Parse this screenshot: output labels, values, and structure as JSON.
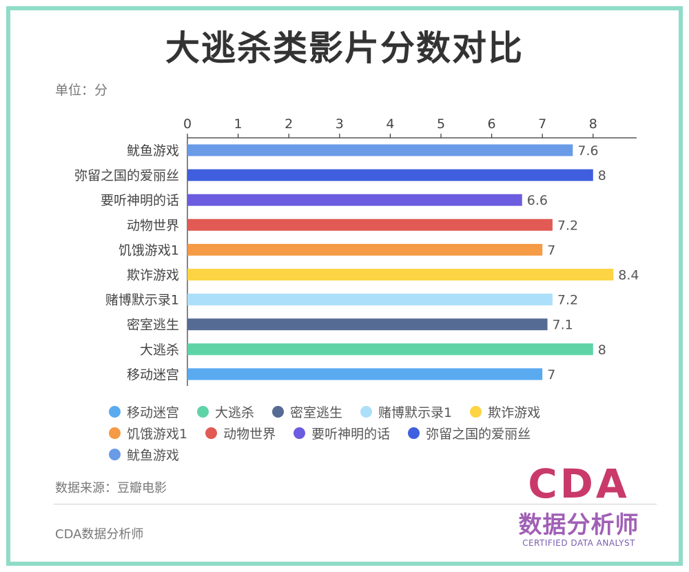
{
  "title": "大逃杀类影片分数对比",
  "unit": "单位：分",
  "source": "数据来源：豆瓣电影",
  "footer": "CDA数据分析师",
  "logo": {
    "main": "CDA",
    "cn": "数据分析师",
    "en": "CERTIFIED DATA ANALYST"
  },
  "chart_data": {
    "type": "bar",
    "orientation": "horizontal",
    "categories": [
      "鱿鱼游戏",
      "弥留之国的爱丽丝",
      "要听神明的话",
      "动物世界",
      "饥饿游戏1",
      "欺诈游戏",
      "赌博默示录1",
      "密室逃生",
      "大逃杀",
      "移动迷宫"
    ],
    "values": [
      7.6,
      8,
      6.6,
      7.2,
      7,
      8.4,
      7.2,
      7.1,
      8,
      7
    ],
    "value_labels": [
      "7.6",
      "8",
      "6.6",
      "7.2",
      "7",
      "8.4",
      "7.2",
      "7.1",
      "8",
      "7"
    ],
    "colors": [
      "#6a9be6",
      "#3f5fde",
      "#6b5ce0",
      "#e25a54",
      "#f59a45",
      "#fdd443",
      "#ace0fa",
      "#566b94",
      "#5ed4a6",
      "#5aaaf0"
    ],
    "xlim": [
      0,
      8.8
    ],
    "x_ticks": [
      "0",
      "1",
      "2",
      "3",
      "4",
      "5",
      "6",
      "7",
      "8"
    ],
    "x_axis_position": "top",
    "grid": false,
    "legend_position": "bottom",
    "legend": [
      {
        "label": "移动迷宫",
        "color": "#5aaaf0"
      },
      {
        "label": "大逃杀",
        "color": "#5ed4a6"
      },
      {
        "label": "密室逃生",
        "color": "#566b94"
      },
      {
        "label": "赌博默示录1",
        "color": "#ace0fa"
      },
      {
        "label": "欺诈游戏",
        "color": "#fdd443"
      },
      {
        "label": "饥饿游戏1",
        "color": "#f59a45"
      },
      {
        "label": "动物世界",
        "color": "#e25a54"
      },
      {
        "label": "要听神明的话",
        "color": "#6b5ce0"
      },
      {
        "label": "弥留之国的爱丽丝",
        "color": "#3f5fde"
      },
      {
        "label": "鱿鱼游戏",
        "color": "#6a9be6"
      }
    ]
  }
}
